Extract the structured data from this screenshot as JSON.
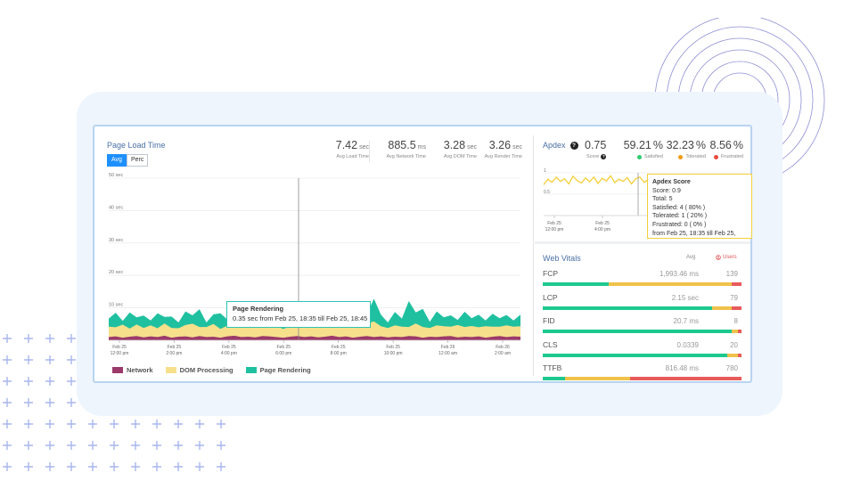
{
  "colors": {
    "network": "#9b3a6a",
    "dom": "#f6e08c",
    "render": "#1fc0a0",
    "accent": "#1e90ff",
    "apdex_line": "#f5cf3a",
    "satisfied": "#2ecc71",
    "tolerated": "#f39c12",
    "frustrated": "#e74c3c"
  },
  "page_load": {
    "title": "Page Load Time",
    "toggle": {
      "avg": "Avg",
      "perc": "Perc"
    },
    "metrics": [
      {
        "value": "7.42",
        "unit": "sec",
        "label": "Avg Load Time"
      },
      {
        "value": "885.5",
        "unit": "ms",
        "label": "Avg Network Time"
      },
      {
        "value": "3.28",
        "unit": "sec",
        "label": "Avg DOM Time"
      },
      {
        "value": "3.26",
        "unit": "sec",
        "label": "Avg Render Time"
      }
    ],
    "legend": [
      "Network",
      "DOM Processing",
      "Page Rendering"
    ],
    "tooltip": {
      "title": "Page Rendering",
      "body": "0.35 sec from Feb 25, 18:35 till Feb 25, 18:45"
    }
  },
  "chart_data": [
    {
      "type": "area",
      "title": "Page Load Time",
      "ylim": [
        0,
        50
      ],
      "y_ticks": [
        "50 sec",
        "40 sec",
        "30 sec",
        "20 sec",
        "10 sec"
      ],
      "y_tick_values": [
        50,
        40,
        30,
        20,
        10
      ],
      "x_ticks": [
        [
          "Feb 25",
          "12:00 pm"
        ],
        [
          "Feb 25",
          "2:00 pm"
        ],
        [
          "Feb 25",
          "4:00 pm"
        ],
        [
          "Feb 25",
          "6:00 pm"
        ],
        [
          "Feb 25",
          "8:00 pm"
        ],
        [
          "Feb 25",
          "10:00 pm"
        ],
        [
          "Feb 26",
          "12:00 am"
        ],
        [
          "Feb 26",
          "2:00 am"
        ]
      ],
      "stacked": true,
      "series": [
        {
          "name": "Network",
          "values": [
            1.0,
            1.2,
            0.8,
            1.1,
            1.3,
            0.9,
            1.2,
            1.0,
            1.4,
            0.8,
            1.1,
            1.2,
            0.9,
            1.3,
            1.0,
            1.1,
            0.8,
            1.2,
            1.4,
            1.0,
            1.1,
            0.9,
            1.3,
            1.2,
            1.0,
            0.8,
            1.1,
            1.3,
            1.0,
            1.2,
            0.9,
            1.1,
            1.4,
            1.0,
            1.2,
            0.8,
            1.1,
            1.3,
            1.0,
            1.2,
            0.9,
            1.1,
            1.0,
            1.3,
            1.2,
            0.8,
            1.1,
            1.0,
            1.2,
            1.3,
            0.9,
            1.1,
            1.0,
            1.2,
            0.8,
            1.1,
            1.3,
            1.0,
            1.2,
            1.1
          ]
        },
        {
          "name": "DOM Processing",
          "values": [
            3.2,
            2.8,
            4.0,
            2.5,
            3.6,
            2.9,
            3.4,
            2.7,
            3.8,
            3.0,
            2.6,
            3.5,
            4.2,
            2.8,
            3.1,
            3.9,
            2.7,
            3.3,
            4.5,
            2.9,
            3.6,
            3.0,
            2.8,
            4.1,
            3.4,
            2.7,
            3.2,
            3.8,
            2.9,
            4.6,
            3.1,
            3.5,
            2.8,
            4.2,
            3.0,
            3.6,
            2.7,
            3.9,
            4.8,
            3.1,
            2.9,
            3.5,
            3.2,
            2.8,
            4.0,
            3.3,
            2.7,
            3.6,
            3.1,
            2.9,
            3.8,
            3.0,
            3.4,
            2.8,
            3.5,
            3.1,
            2.9,
            3.6,
            3.0,
            3.2
          ]
        },
        {
          "name": "Page Rendering",
          "values": [
            2.5,
            4.5,
            1.2,
            5.0,
            2.2,
            3.8,
            1.5,
            4.6,
            2.0,
            3.5,
            1.8,
            4.2,
            2.6,
            5.5,
            1.4,
            3.0,
            4.8,
            1.9,
            3.6,
            2.4,
            4.0,
            1.6,
            5.2,
            2.3,
            3.1,
            6.0,
            1.8,
            4.4,
            2.7,
            3.3,
            1.5,
            4.9,
            2.1,
            3.8,
            5.8,
            2.0,
            4.5,
            2.9,
            7.0,
            3.6,
            1.7,
            4.1,
            2.5,
            8.0,
            3.4,
            5.6,
            1.9,
            4.3,
            2.8,
            3.5,
            1.6,
            4.7,
            2.4,
            3.9,
            1.8,
            4.0,
            2.6,
            3.2,
            1.9,
            3.6
          ]
        }
      ]
    },
    {
      "type": "line",
      "title": "Apdex",
      "ylim": [
        0,
        1
      ],
      "y_ticks": [
        "1",
        "0.5"
      ],
      "y_tick_values": [
        1,
        0.5
      ],
      "x_ticks": [
        [
          "Feb 25",
          "12:00 pm"
        ],
        [
          "Feb 25",
          "4:00 pm"
        ]
      ],
      "series": [
        {
          "name": "Apdex Score",
          "values": [
            0.72,
            0.85,
            0.78,
            0.9,
            0.8,
            0.86,
            0.74,
            0.92,
            0.82,
            0.76,
            0.88,
            0.79,
            0.9,
            0.75,
            0.87,
            0.81,
            0.93,
            0.77,
            0.85,
            0.8,
            0.89,
            0.74,
            0.86,
            0.9,
            0.78,
            0.84,
            0.72,
            0.91,
            0.8,
            0.88,
            0.76,
            0.85,
            0.92,
            0.79,
            0.87,
            0.9,
            0.82,
            0.78,
            0.88,
            0.84,
            0.9,
            0.8,
            0.86,
            0.83,
            0.88,
            0.85,
            0.9,
            0.82,
            0.87,
            0.84
          ]
        }
      ]
    }
  ],
  "apdex": {
    "title": "Apdex",
    "score": {
      "value": "0.75",
      "label": "Score"
    },
    "satisfied": {
      "value": "59.21",
      "label": "Satisfied"
    },
    "tolerated": {
      "value": "32.23",
      "label": "Tolerated"
    },
    "frustrated": {
      "value": "8.56",
      "label": "Frustrated"
    },
    "pct_unit": "%",
    "tooltip": {
      "title": "Apdex Score",
      "lines": [
        "Score: 0.9",
        "Total: 5",
        "Satisfied: 4 ( 80% )",
        "Tolerated: 1 ( 20% )",
        "Frustrated: 0 ( 0% )",
        "from Feb 25, 18:35 till Feb 25,"
      ]
    }
  },
  "web_vitals": {
    "title": "Web Vitals",
    "avg_label": "Avg",
    "users_label": "Users",
    "rows": [
      {
        "name": "FCP",
        "avg": "1,993.46 ms",
        "users": "139",
        "good": 0.33,
        "needs": 0.62,
        "poor": 0.05
      },
      {
        "name": "LCP",
        "avg": "2.15 sec",
        "users": "79",
        "good": 0.85,
        "needs": 0.1,
        "poor": 0.05
      },
      {
        "name": "FID",
        "avg": "20.7 ms",
        "users": "8",
        "good": 0.95,
        "needs": 0.03,
        "poor": 0.02
      },
      {
        "name": "CLS",
        "avg": "0.0339",
        "users": "20",
        "good": 0.93,
        "needs": 0.05,
        "poor": 0.02
      },
      {
        "name": "TTFB",
        "avg": "816.48 ms",
        "users": "780",
        "good": 0.11,
        "needs": 0.33,
        "poor": 0.56
      }
    ]
  }
}
